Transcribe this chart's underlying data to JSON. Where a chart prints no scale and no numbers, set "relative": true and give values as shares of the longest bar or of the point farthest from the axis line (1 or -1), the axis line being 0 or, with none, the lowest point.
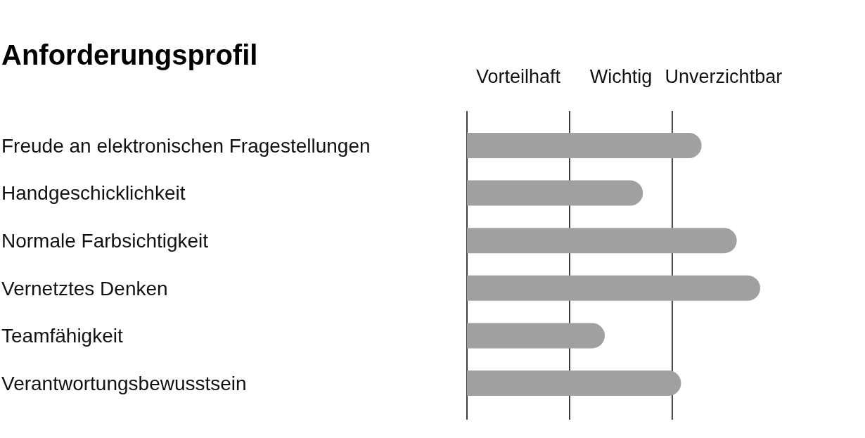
{
  "chart_data": {
    "type": "bar",
    "orientation": "horizontal",
    "title": "Anforderungsprofil",
    "relative": true,
    "categories": [
      "Freude an elektronischen Fragestellungen",
      "Handgeschicklichkeit",
      "Normale Farbsichtigkeit",
      "Vernetztes Denken",
      "Teamfähigkeit",
      "Verantwortungsbewusstsein"
    ],
    "values": [
      0.8,
      0.6,
      0.92,
      1,
      0.47,
      0.73
    ],
    "color": "#a0a0a0",
    "annotations": [
      "Vorteilhaft",
      "Wichtig",
      "Unverzichtbar"
    ],
    "ref_lines": [
      {
        "axis": "x",
        "value": 0,
        "color": "#000000"
      },
      {
        "axis": "x",
        "value": 0.35,
        "color": "#000000"
      },
      {
        "axis": "x",
        "value": 0.7,
        "color": "#000000"
      }
    ]
  }
}
